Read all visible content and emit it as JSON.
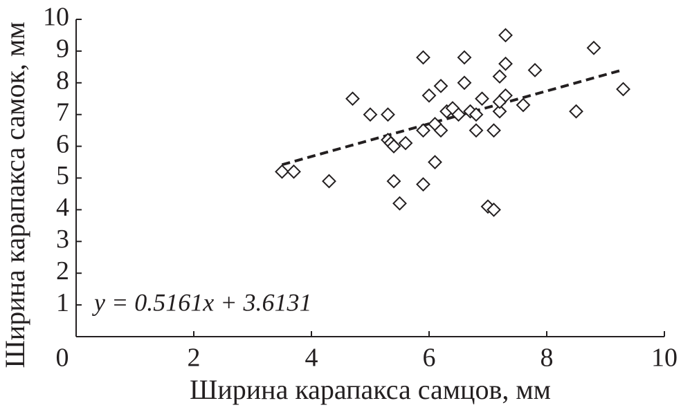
{
  "chart_data": {
    "type": "scatter",
    "x_label": "Ширина карапакса самцов, мм",
    "y_label": "Ширина карапакса самок, мм",
    "x": [
      3.5,
      3.7,
      4.3,
      4.7,
      5.0,
      5.3,
      5.3,
      5.35,
      5.4,
      5.6,
      5.4,
      5.5,
      5.9,
      5.9,
      5.9,
      6.0,
      6.1,
      6.1,
      6.2,
      6.2,
      6.3,
      6.4,
      6.5,
      6.6,
      6.6,
      6.7,
      6.8,
      6.8,
      6.9,
      7.0,
      7.1,
      7.1,
      7.2,
      7.2,
      7.2,
      7.3,
      7.3,
      7.3,
      7.6,
      7.8,
      8.5,
      8.8,
      9.3
    ],
    "values": [
      5.2,
      5.2,
      4.9,
      7.5,
      7.0,
      7.0,
      6.2,
      6.1,
      6.0,
      6.1,
      4.9,
      4.2,
      8.8,
      6.5,
      4.8,
      7.6,
      5.5,
      6.7,
      7.9,
      6.5,
      7.1,
      7.2,
      7.0,
      8.8,
      8.0,
      7.1,
      7.0,
      6.5,
      7.5,
      4.1,
      4.0,
      6.5,
      8.2,
      7.1,
      7.4,
      9.5,
      8.6,
      7.6,
      7.3,
      8.4,
      7.1,
      9.1,
      7.8
    ],
    "color": "#231f20",
    "trendline": {
      "label": "y = 0.5161x + 3.6131",
      "slope": 0.5161,
      "intercept": 3.6131,
      "x": [
        3.5,
        9.3
      ]
    },
    "xlim": [
      0,
      10
    ],
    "xticks": [
      0,
      2,
      4,
      6,
      8,
      10
    ],
    "ylim": [
      0,
      10
    ],
    "yticks": [
      1,
      2,
      3,
      4,
      5,
      6,
      7,
      8,
      9,
      10
    ]
  }
}
